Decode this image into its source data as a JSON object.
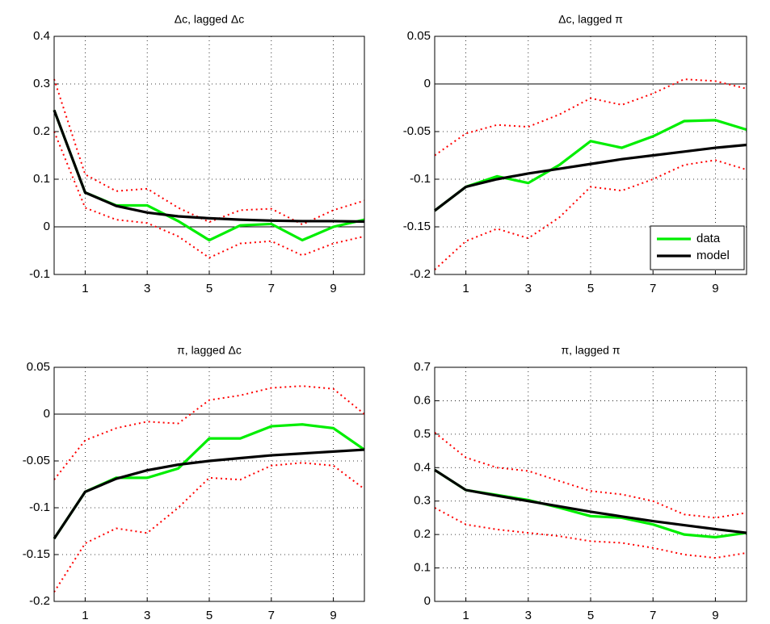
{
  "chart_data": [
    {
      "type": "line",
      "title": "Δc, lagged Δc",
      "x": [
        0,
        1,
        2,
        3,
        4,
        5,
        6,
        7,
        8,
        9,
        10
      ],
      "xlim": [
        0,
        10
      ],
      "xticks": [
        1,
        3,
        5,
        7,
        9
      ],
      "ylim": [
        -0.1,
        0.4
      ],
      "yticks": [
        -0.1,
        0,
        0.1,
        0.2,
        0.3,
        0.4
      ],
      "grid": true,
      "series": [
        {
          "color": "#ff0000",
          "style": "dotted",
          "values": [
            0.31,
            0.11,
            0.075,
            0.08,
            0.04,
            0.01,
            0.035,
            0.038,
            0.005,
            0.035,
            0.055
          ]
        },
        {
          "color": "#ff0000",
          "style": "dotted",
          "values": [
            0.2,
            0.04,
            0.015,
            0.008,
            -0.02,
            -0.065,
            -0.035,
            -0.03,
            -0.06,
            -0.035,
            -0.02
          ]
        },
        {
          "color": "#00ee00",
          "style": "solid",
          "values": [
            0.245,
            0.072,
            0.045,
            0.045,
            0.012,
            -0.028,
            0.003,
            0.006,
            -0.028,
            0.0,
            0.015
          ]
        },
        {
          "color": "#000000",
          "style": "solid",
          "values": [
            0.245,
            0.072,
            0.044,
            0.03,
            0.022,
            0.018,
            0.015,
            0.013,
            0.012,
            0.012,
            0.011
          ]
        }
      ]
    },
    {
      "type": "line",
      "title": "Δc, lagged π",
      "x": [
        0,
        1,
        2,
        3,
        4,
        5,
        6,
        7,
        8,
        9,
        10
      ],
      "xlim": [
        0,
        10
      ],
      "xticks": [
        1,
        3,
        5,
        7,
        9
      ],
      "ylim": [
        -0.2,
        0.05
      ],
      "yticks": [
        -0.2,
        -0.15,
        -0.1,
        -0.05,
        0,
        0.05
      ],
      "grid": true,
      "legend": "lower right",
      "series": [
        {
          "color": "#ff0000",
          "style": "dotted",
          "values": [
            -0.075,
            -0.052,
            -0.043,
            -0.045,
            -0.032,
            -0.015,
            -0.022,
            -0.01,
            0.005,
            0.003,
            -0.005
          ]
        },
        {
          "color": "#ff0000",
          "style": "dotted",
          "values": [
            -0.195,
            -0.165,
            -0.152,
            -0.162,
            -0.14,
            -0.108,
            -0.112,
            -0.1,
            -0.085,
            -0.08,
            -0.09
          ]
        },
        {
          "name": "data",
          "color": "#00ee00",
          "style": "solid",
          "values": [
            -0.133,
            -0.108,
            -0.097,
            -0.104,
            -0.085,
            -0.06,
            -0.067,
            -0.055,
            -0.039,
            -0.038,
            -0.048
          ]
        },
        {
          "name": "model",
          "color": "#000000",
          "style": "solid",
          "values": [
            -0.133,
            -0.108,
            -0.1,
            -0.094,
            -0.089,
            -0.084,
            -0.079,
            -0.075,
            -0.071,
            -0.067,
            -0.064
          ]
        }
      ]
    },
    {
      "type": "line",
      "title": "π, lagged Δc",
      "x": [
        0,
        1,
        2,
        3,
        4,
        5,
        6,
        7,
        8,
        9,
        10
      ],
      "xlim": [
        0,
        10
      ],
      "xticks": [
        1,
        3,
        5,
        7,
        9
      ],
      "ylim": [
        -0.2,
        0.05
      ],
      "yticks": [
        -0.2,
        -0.15,
        -0.1,
        -0.05,
        0,
        0.05
      ],
      "grid": true,
      "series": [
        {
          "color": "#ff0000",
          "style": "dotted",
          "values": [
            -0.07,
            -0.028,
            -0.015,
            -0.008,
            -0.01,
            0.015,
            0.02,
            0.028,
            0.03,
            0.027,
            0.0
          ]
        },
        {
          "color": "#ff0000",
          "style": "dotted",
          "values": [
            -0.19,
            -0.138,
            -0.122,
            -0.127,
            -0.1,
            -0.068,
            -0.07,
            -0.055,
            -0.052,
            -0.055,
            -0.08
          ]
        },
        {
          "color": "#00ee00",
          "style": "solid",
          "values": [
            -0.133,
            -0.083,
            -0.068,
            -0.068,
            -0.058,
            -0.026,
            -0.026,
            -0.013,
            -0.011,
            -0.015,
            -0.038
          ]
        },
        {
          "color": "#000000",
          "style": "solid",
          "values": [
            -0.133,
            -0.083,
            -0.069,
            -0.06,
            -0.054,
            -0.05,
            -0.047,
            -0.044,
            -0.042,
            -0.04,
            -0.038
          ]
        }
      ]
    },
    {
      "type": "line",
      "title": "π, lagged π",
      "x": [
        0,
        1,
        2,
        3,
        4,
        5,
        6,
        7,
        8,
        9,
        10
      ],
      "xlim": [
        0,
        10
      ],
      "xticks": [
        1,
        3,
        5,
        7,
        9
      ],
      "ylim": [
        0,
        0.7
      ],
      "yticks": [
        0,
        0.1,
        0.2,
        0.3,
        0.4,
        0.5,
        0.6,
        0.7
      ],
      "grid": true,
      "series": [
        {
          "color": "#ff0000",
          "style": "dotted",
          "values": [
            0.505,
            0.43,
            0.4,
            0.39,
            0.36,
            0.33,
            0.32,
            0.3,
            0.26,
            0.25,
            0.265
          ]
        },
        {
          "color": "#ff0000",
          "style": "dotted",
          "values": [
            0.28,
            0.23,
            0.215,
            0.205,
            0.195,
            0.18,
            0.175,
            0.16,
            0.14,
            0.13,
            0.145
          ]
        },
        {
          "color": "#00ee00",
          "style": "solid",
          "values": [
            0.393,
            0.333,
            0.318,
            0.303,
            0.28,
            0.255,
            0.25,
            0.23,
            0.2,
            0.192,
            0.205
          ]
        },
        {
          "color": "#000000",
          "style": "solid",
          "values": [
            0.393,
            0.333,
            0.316,
            0.3,
            0.284,
            0.268,
            0.254,
            0.24,
            0.228,
            0.216,
            0.205
          ]
        }
      ]
    }
  ]
}
